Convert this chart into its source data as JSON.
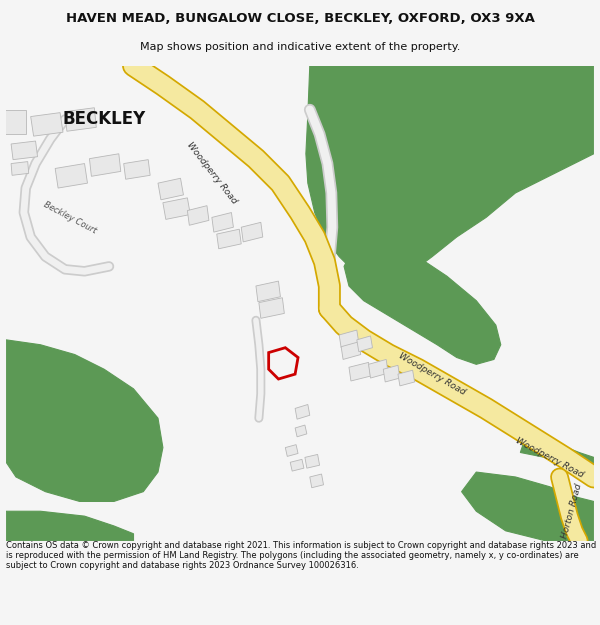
{
  "title": "HAVEN MEAD, BUNGALOW CLOSE, BECKLEY, OXFORD, OX3 9XA",
  "subtitle": "Map shows position and indicative extent of the property.",
  "footer": "Contains OS data © Crown copyright and database right 2021. This information is subject to Crown copyright and database rights 2023 and is reproduced with the permission of HM Land Registry. The polygons (including the associated geometry, namely x, y co-ordinates) are subject to Crown copyright and database rights 2023 Ordnance Survey 100026316.",
  "map_bg": "#ffffff",
  "road_color": "#f5e9a0",
  "road_border": "#d4a800",
  "green_color": "#5c9955",
  "building_color": "#e8e8e8",
  "building_edge": "#b8b8b8",
  "red_plot": "#cc0000",
  "text_color": "#111111"
}
